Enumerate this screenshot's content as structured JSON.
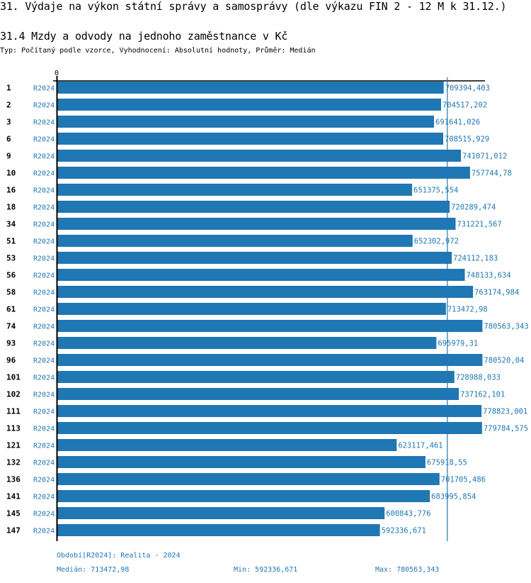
{
  "header": {
    "title": "31. Výdaje na výkon státní správy a samosprávy (dle výkazu FIN 2 - 12 M k 31.12.)",
    "subtitle": "31.4 Mzdy a odvody na jednoho zaměstnance v Kč",
    "typ": "Typ: Počítaný podle vzorce, Vyhodnocení: Absolutní hodnoty, Průměr: Medián"
  },
  "colors": {
    "bar": "#1f77b4",
    "text": "#1f77b4",
    "axis": "#000000"
  },
  "chart_data": {
    "type": "bar",
    "orientation": "horizontal",
    "title": "31.4 Mzdy a odvody na jednoho zaměstnance v Kč",
    "xlabel": "",
    "ylabel": "",
    "x_tick_labels": [
      "0"
    ],
    "xlim": [
      0,
      780000
    ],
    "period_label": "R2024",
    "categories": [
      "1",
      "2",
      "3",
      "6",
      "9",
      "10",
      "16",
      "18",
      "34",
      "51",
      "53",
      "56",
      "58",
      "61",
      "74",
      "93",
      "96",
      "101",
      "102",
      "111",
      "113",
      "121",
      "132",
      "136",
      "141",
      "145",
      "147"
    ],
    "values": [
      709394.403,
      704517.202,
      691641.026,
      708515.929,
      741071.012,
      757744.78,
      651375.554,
      720289.474,
      731221.567,
      652302.972,
      724112.183,
      748133.634,
      763174.984,
      713472.98,
      780563.343,
      695979.31,
      780520.04,
      728988.033,
      737162.101,
      778823.001,
      779784.575,
      623117.461,
      675918.55,
      701705.486,
      683995.854,
      600843.776,
      592336.671
    ],
    "value_labels": [
      "709394,403",
      "704517,202",
      "691641,026",
      "708515,929",
      "741071,012",
      "757744,78",
      "651375,554",
      "720289,474",
      "731221,567",
      "652302,972",
      "724112,183",
      "748133,634",
      "763174,984",
      "713472,98",
      "780563,343",
      "695979,31",
      "780520,04",
      "728988,033",
      "737162,101",
      "778823,001",
      "779784,575",
      "623117,461",
      "675918,55",
      "701705,486",
      "683995,854",
      "600843,776",
      "592336,671"
    ],
    "reference_line": {
      "name": "Medián",
      "value": 713472.98
    },
    "grid": false,
    "legend": "none"
  },
  "footer": {
    "period": "Období[R2024]: Realita - 2024",
    "median": "Medián: 713472,98",
    "min": "Min: 592336,671",
    "max": "Max: 780563,343"
  }
}
